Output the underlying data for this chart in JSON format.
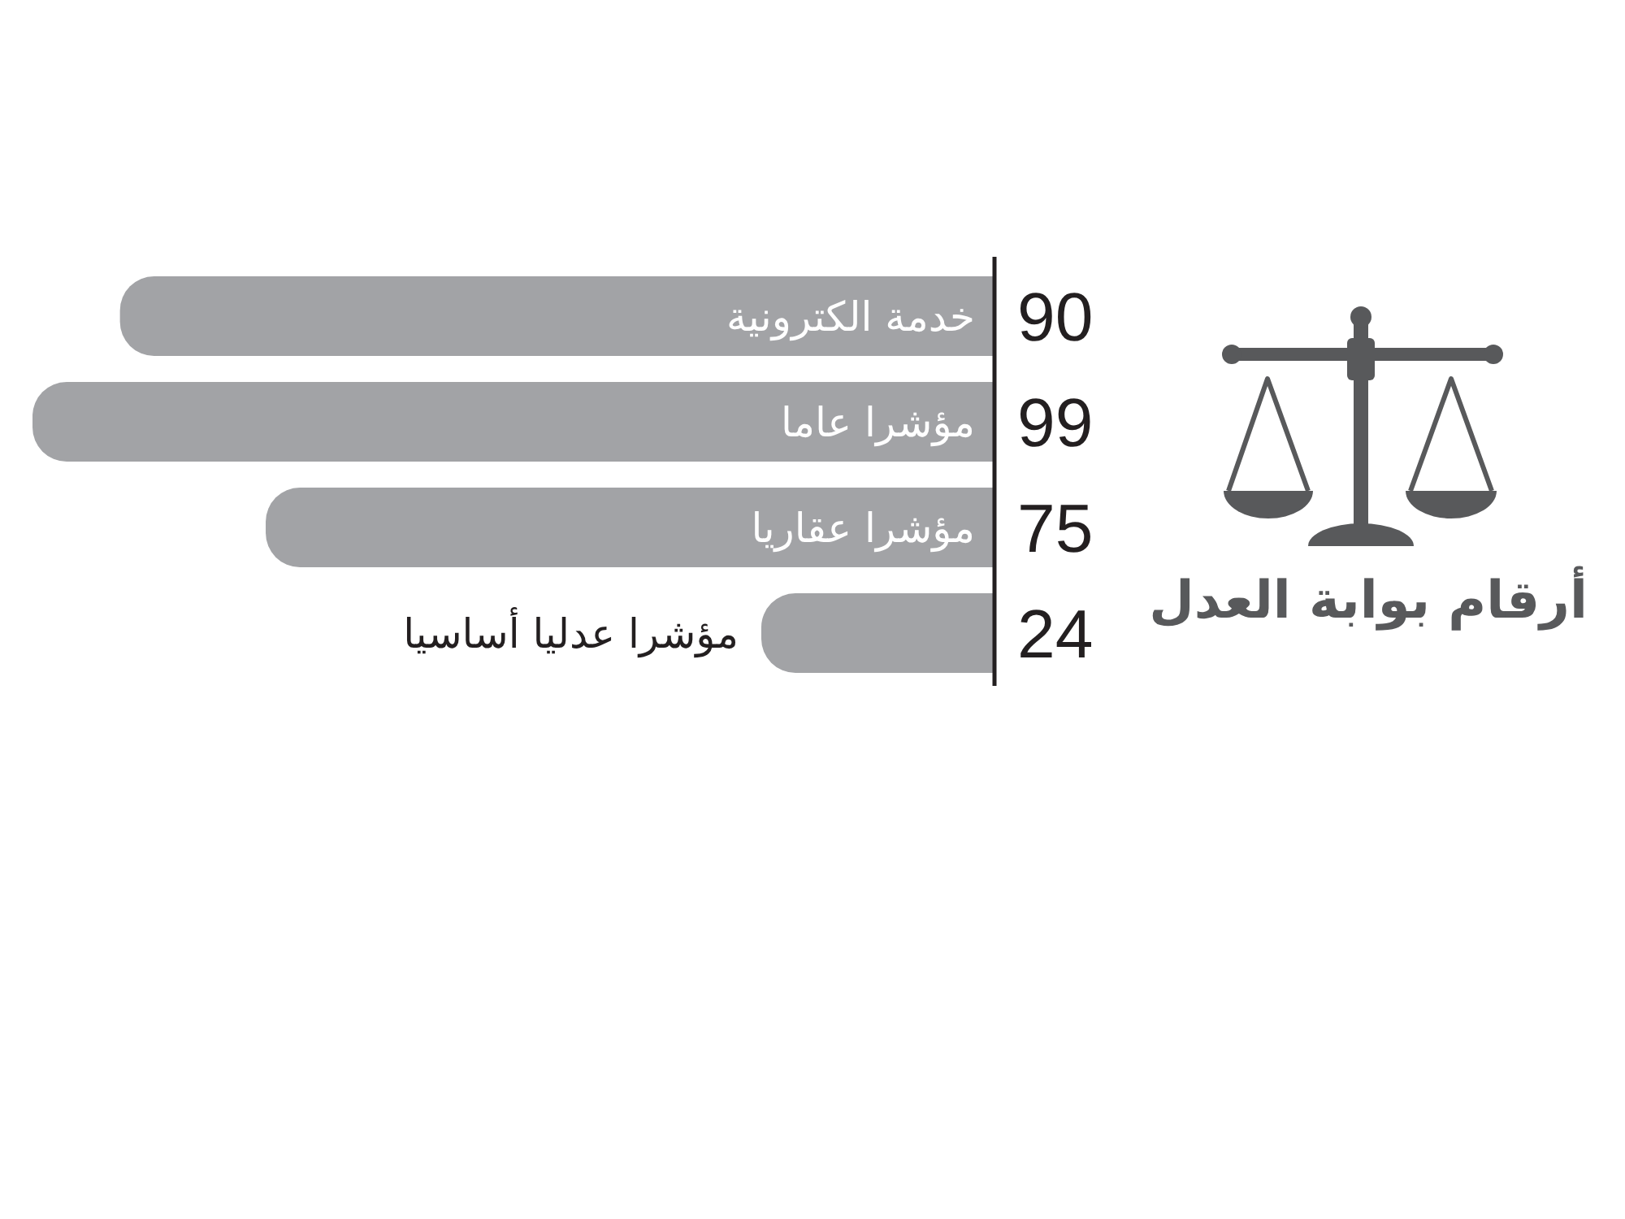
{
  "chart_data": {
    "type": "bar",
    "orientation": "horizontal",
    "title": "أرقام بوابة العدل",
    "categories": [
      "خدمة الكترونية",
      "مؤشرا عاما",
      "مؤشرا عقاريا",
      "مؤشرا عدليا أساسيا"
    ],
    "values": [
      90,
      99,
      75,
      24
    ],
    "color": "#a2a3a6",
    "data_labels": true
  }
}
